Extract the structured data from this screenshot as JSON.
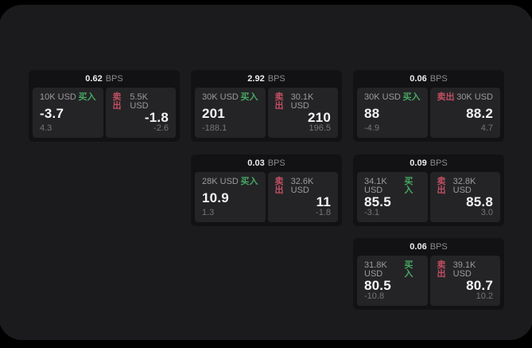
{
  "page": {
    "background": "#000000",
    "window_background": "#1b1b1d",
    "card_background": "#121214",
    "panel_background": "#242427"
  },
  "colors": {
    "buy_green": "#47a861",
    "sell_red": "#c14f62",
    "value_white": "#f4f4f4",
    "muted_gray": "#9b9b9b",
    "delta_gray": "#757577"
  },
  "labels": {
    "bps": "BPS",
    "buy": "买入",
    "sell": "卖出"
  },
  "cards": [
    {
      "col": 1,
      "row": 1,
      "bps": "0.62",
      "buy": {
        "amount": "10K USD",
        "value": "-3.7",
        "delta": "4.3"
      },
      "sell": {
        "amount": "5.5K USD",
        "value": "-1.8",
        "delta": "-2.6"
      }
    },
    {
      "col": 2,
      "row": 1,
      "bps": "2.92",
      "buy": {
        "amount": "30K USD",
        "value": "201",
        "delta": "-188.1"
      },
      "sell": {
        "amount": "30.1K USD",
        "value": "210",
        "delta": "196.5"
      }
    },
    {
      "col": 3,
      "row": 1,
      "bps": "0.06",
      "buy": {
        "amount": "30K USD",
        "value": "88",
        "delta": "-4.9"
      },
      "sell": {
        "amount": "30K USD",
        "value": "88.2",
        "delta": "4.7"
      }
    },
    {
      "col": 2,
      "row": 2,
      "bps": "0.03",
      "buy": {
        "amount": "28K USD",
        "value": "10.9",
        "delta": "1.3"
      },
      "sell": {
        "amount": "32.6K USD",
        "value": "11",
        "delta": "-1.8"
      }
    },
    {
      "col": 3,
      "row": 2,
      "bps": "0.09",
      "buy": {
        "amount": "34.1K USD",
        "value": "85.5",
        "delta": "-3.1"
      },
      "sell": {
        "amount": "32.8K USD",
        "value": "85.8",
        "delta": "3.0"
      }
    },
    {
      "col": 3,
      "row": 3,
      "bps": "0.06",
      "buy": {
        "amount": "31.8K USD",
        "value": "80.5",
        "delta": "-10.8"
      },
      "sell": {
        "amount": "39.1K USD",
        "value": "80.7",
        "delta": "10.2"
      }
    }
  ]
}
